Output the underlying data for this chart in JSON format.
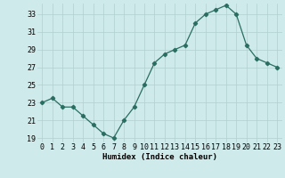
{
  "x": [
    0,
    1,
    2,
    3,
    4,
    5,
    6,
    7,
    8,
    9,
    10,
    11,
    12,
    13,
    14,
    15,
    16,
    17,
    18,
    19,
    20,
    21,
    22,
    23
  ],
  "y": [
    23,
    23.5,
    22.5,
    22.5,
    21.5,
    20.5,
    19.5,
    19,
    21,
    22.5,
    25,
    27.5,
    28.5,
    29,
    29.5,
    32,
    33,
    33.5,
    34,
    33,
    29.5,
    28,
    27.5,
    27
  ],
  "line_color": "#2a6e62",
  "marker": "D",
  "marker_size": 2.2,
  "bg_color": "#ceeaea",
  "grid_color": "#b0d0d0",
  "xlabel": "Humidex (Indice chaleur)",
  "ylim": [
    18.5,
    34.2
  ],
  "yticks": [
    19,
    21,
    23,
    25,
    27,
    29,
    31,
    33
  ],
  "xticks": [
    0,
    1,
    2,
    3,
    4,
    5,
    6,
    7,
    8,
    9,
    10,
    11,
    12,
    13,
    14,
    15,
    16,
    17,
    18,
    19,
    20,
    21,
    22,
    23
  ],
  "xlabel_fontsize": 6.5,
  "tick_fontsize": 6.0,
  "linewidth": 0.9
}
